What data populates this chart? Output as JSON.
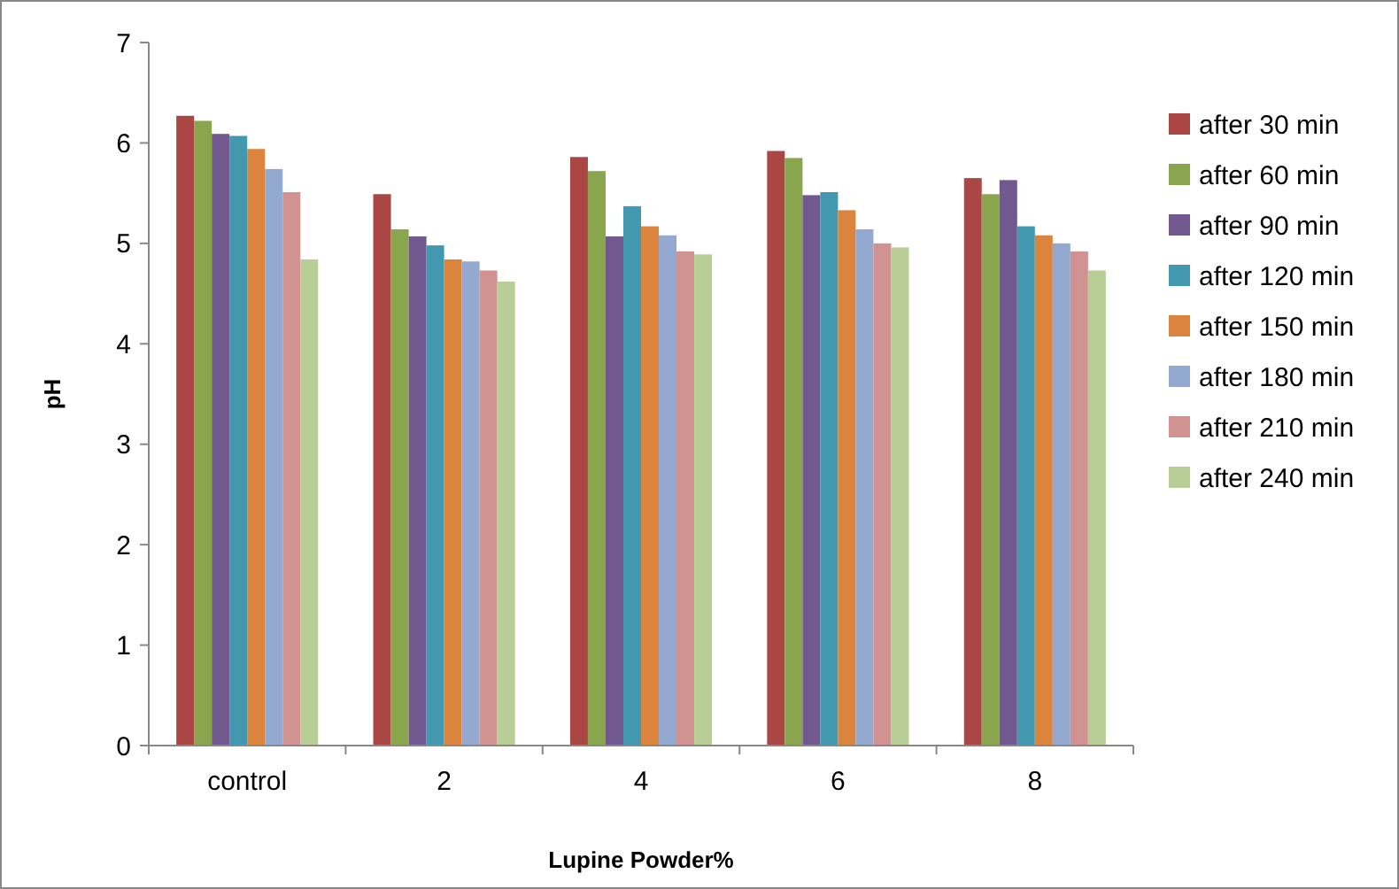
{
  "chart_data": {
    "type": "bar",
    "xlabel": "Lupine Powder%",
    "ylabel": "pH",
    "categories": [
      "control",
      "2",
      "4",
      "6",
      "8"
    ],
    "ylim": [
      0,
      7
    ],
    "yticks": [
      0,
      1,
      2,
      3,
      4,
      5,
      6,
      7
    ],
    "grid": false,
    "legend": "right",
    "series": [
      {
        "name": "after 30 min",
        "color": "#aa4644",
        "values": [
          6.27,
          5.49,
          5.86,
          5.92,
          5.65
        ]
      },
      {
        "name": "after 60 min",
        "color": "#89a54e",
        "values": [
          6.22,
          5.14,
          5.72,
          5.85,
          5.49
        ]
      },
      {
        "name": "after 90 min",
        "color": "#71588f",
        "values": [
          6.09,
          5.07,
          5.07,
          5.48,
          5.63
        ]
      },
      {
        "name": "after 120 min",
        "color": "#4198af",
        "values": [
          6.07,
          4.98,
          5.37,
          5.51,
          5.17
        ]
      },
      {
        "name": "after 150 min",
        "color": "#db843d",
        "values": [
          5.94,
          4.84,
          5.17,
          5.33,
          5.08
        ]
      },
      {
        "name": "after 180 min",
        "color": "#93a9cf",
        "values": [
          5.74,
          4.82,
          5.08,
          5.14,
          5.0
        ]
      },
      {
        "name": "after 210 min",
        "color": "#d19392",
        "values": [
          5.51,
          4.73,
          4.92,
          5.0,
          4.92
        ]
      },
      {
        "name": "after 240 min",
        "color": "#b9cd96",
        "values": [
          4.84,
          4.62,
          4.89,
          4.96,
          4.73
        ]
      }
    ]
  }
}
